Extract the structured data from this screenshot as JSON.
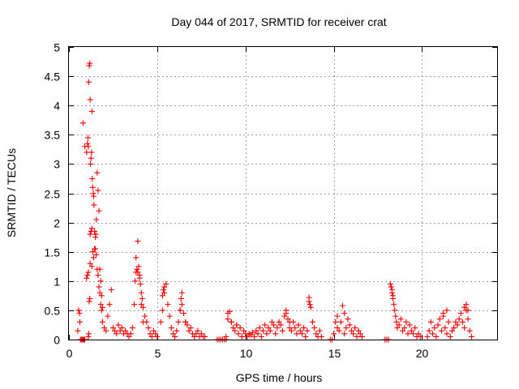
{
  "chart_data": {
    "type": "scatter",
    "title": "Day 044 of 2017, SRMTID for receiver crat",
    "xlabel": "GPS time / hours",
    "ylabel": "SRMTID / TECUs",
    "xlim": [
      0,
      24.25
    ],
    "ylim": [
      0,
      5
    ],
    "xticks": [
      0,
      5,
      10,
      15,
      20
    ],
    "yticks": [
      0,
      0.5,
      1,
      1.5,
      2,
      2.5,
      3,
      3.5,
      4,
      4.5,
      5
    ],
    "grid": true,
    "marker": "+",
    "color": "#ff0000",
    "series": [
      {
        "name": "SRMTID",
        "x": [
          0.5,
          0.55,
          0.6,
          0.62,
          0.65,
          0.7,
          0.75,
          0.8,
          0.85,
          0.9,
          0.8,
          0.9,
          1.0,
          1.05,
          1.08,
          1.1,
          1.12,
          1.15,
          1.18,
          1.2,
          1.22,
          1.25,
          1.28,
          1.3,
          1.32,
          1.35,
          1.38,
          1.4,
          1.42,
          1.45,
          1.5,
          1.55,
          1.6,
          1.65,
          1.7,
          1.75,
          1.8,
          1.85,
          1.9,
          2.0,
          2.1,
          2.2,
          2.3,
          2.4,
          2.5,
          2.6,
          2.7,
          2.8,
          2.9,
          3.0,
          3.1,
          3.2,
          3.3,
          3.4,
          1.1,
          1.12,
          1.15,
          1.18,
          1.2,
          1.25,
          1.3,
          1.35,
          1.4,
          1.0,
          1.05,
          1.1,
          1.2,
          1.3,
          1.45,
          1.5,
          1.52,
          1.55,
          1.6,
          1.65,
          1.7,
          1.75,
          1.8,
          1.85,
          1.9,
          3.5,
          3.6,
          3.7,
          3.75,
          3.8,
          3.85,
          3.9,
          3.95,
          4.0,
          4.05,
          4.1,
          4.15,
          4.2,
          4.3,
          4.4,
          4.5,
          4.6,
          4.7,
          4.8,
          4.9,
          5.0,
          3.8,
          3.9,
          4.0,
          4.1,
          4.2,
          5.2,
          5.3,
          5.4,
          5.5,
          5.6,
          5.7,
          5.8,
          5.9,
          6.0,
          6.1,
          6.2,
          6.3,
          6.4,
          6.5,
          6.6,
          6.7,
          6.8,
          6.9,
          7.0,
          7.1,
          7.2,
          7.3,
          7.4,
          7.5,
          7.6,
          7.7,
          5.3,
          5.35,
          5.4,
          6.3,
          6.35,
          6.4,
          6.5,
          6.6,
          8.4,
          8.5,
          8.6,
          8.7,
          8.8,
          8.9,
          8.9,
          9.0,
          9.1,
          9.2,
          9.3,
          9.4,
          9.5,
          9.6,
          9.7,
          9.8,
          9.9,
          10.0,
          10.1,
          10.2,
          10.3,
          10.4,
          10.5,
          10.6,
          10.7,
          10.8,
          10.9,
          11.0,
          11.1,
          11.2,
          11.3,
          11.4,
          11.5,
          11.6,
          11.7,
          11.8,
          11.9,
          12.0,
          12.1,
          12.2,
          12.3,
          12.4,
          12.5,
          12.6,
          12.7,
          12.8,
          12.9,
          13.0,
          13.1,
          13.2,
          13.3,
          13.4,
          13.5,
          13.6,
          13.7,
          13.8,
          13.9,
          14.0,
          14.1,
          14.2,
          14.3,
          9.0,
          9.2,
          9.5,
          12.3,
          12.5,
          13.6,
          13.65,
          14.8,
          14.9,
          15.0,
          15.1,
          15.2,
          15.3,
          15.4,
          15.5,
          15.6,
          15.7,
          15.8,
          15.9,
          16.0,
          16.1,
          16.2,
          16.3,
          16.4,
          16.5,
          16.6,
          15.2,
          15.6,
          17.9,
          18.0,
          18.1,
          18.2,
          18.25,
          18.3,
          18.35,
          18.4,
          18.45,
          18.5,
          18.55,
          18.6,
          18.7,
          18.8,
          18.9,
          19.0,
          19.1,
          19.2,
          19.3,
          19.4,
          19.5,
          19.6,
          19.7,
          19.8,
          19.9,
          18.3,
          18.35,
          20.3,
          20.4,
          20.5,
          20.6,
          20.7,
          20.8,
          20.9,
          21.0,
          21.1,
          21.2,
          21.3,
          21.4,
          21.5,
          21.6,
          21.7,
          21.8,
          21.9,
          22.0,
          22.1,
          22.2,
          22.3,
          22.4,
          22.5,
          22.6,
          22.7,
          22.8,
          21.2,
          21.4,
          22.4,
          22.5,
          22.6
        ],
        "y": [
          0.15,
          0.5,
          0.45,
          0.3,
          0.0,
          0.0,
          0.0,
          0.0,
          0.0,
          0.0,
          3.7,
          3.3,
          3.2,
          3.35,
          3.45,
          3.3,
          4.4,
          4.68,
          4.72,
          4.1,
          3.0,
          3.1,
          3.2,
          3.9,
          2.75,
          2.6,
          2.5,
          2.45,
          2.3,
          1.85,
          1.55,
          1.45,
          1.2,
          1.1,
          0.9,
          0.8,
          0.6,
          0.5,
          0.3,
          0.2,
          0.15,
          0.4,
          0.6,
          0.85,
          0.2,
          0.15,
          0.1,
          0.25,
          0.15,
          0.2,
          0.1,
          0.15,
          0.1,
          0.05,
          0.05,
          0.1,
          0.65,
          0.7,
          1.8,
          1.85,
          1.9,
          1.5,
          1.4,
          1.05,
          1.1,
          1.15,
          1.3,
          1.25,
          1.55,
          1.75,
          1.8,
          2.05,
          2.85,
          2.55,
          2.2,
          1.2,
          1.0,
          0.75,
          0.55,
          0.1,
          0.2,
          0.6,
          1.0,
          1.15,
          1.2,
          1.68,
          1.25,
          1.1,
          0.95,
          0.8,
          0.7,
          0.55,
          0.4,
          0.3,
          0.2,
          0.1,
          0.05,
          0.15,
          0.1,
          0.05,
          1.4,
          1.15,
          1.05,
          0.6,
          0.3,
          0.3,
          0.5,
          0.8,
          0.95,
          0.6,
          0.4,
          0.2,
          0.1,
          0.05,
          0.15,
          0.3,
          0.5,
          0.6,
          0.45,
          0.3,
          0.25,
          0.15,
          0.2,
          0.1,
          0.05,
          0.1,
          0.15,
          0.05,
          0.1,
          0.05,
          0.05,
          0.75,
          0.85,
          0.9,
          0.5,
          0.7,
          0.8,
          0.45,
          0.3,
          0.0,
          0.0,
          0.0,
          0.0,
          0.0,
          0.0,
          0.05,
          0.45,
          0.48,
          0.3,
          0.2,
          0.15,
          0.25,
          0.1,
          0.2,
          0.05,
          0.15,
          0.1,
          0.05,
          0.1,
          0.08,
          0.12,
          0.05,
          0.15,
          0.1,
          0.2,
          0.05,
          0.15,
          0.25,
          0.1,
          0.2,
          0.15,
          0.3,
          0.25,
          0.1,
          0.2,
          0.3,
          0.25,
          0.15,
          0.4,
          0.5,
          0.35,
          0.2,
          0.15,
          0.3,
          0.2,
          0.1,
          0.25,
          0.15,
          0.1,
          0.2,
          0.05,
          0.15,
          0.65,
          0.55,
          0.3,
          0.2,
          0.1,
          0.05,
          0.15,
          0.05,
          0.35,
          0.3,
          0.25,
          0.45,
          0.3,
          0.72,
          0.6,
          0.0,
          0.0,
          0.1,
          0.3,
          0.2,
          0.15,
          0.3,
          0.58,
          0.1,
          0.2,
          0.35,
          0.25,
          0.15,
          0.1,
          0.2,
          0.05,
          0.15,
          0.1,
          0.05,
          0.4,
          0.45,
          0.0,
          0.0,
          0.0,
          0.95,
          0.9,
          0.8,
          0.7,
          0.6,
          0.5,
          0.4,
          0.3,
          0.2,
          0.25,
          0.35,
          0.15,
          0.2,
          0.3,
          0.1,
          0.25,
          0.15,
          0.1,
          0.2,
          0.05,
          0.1,
          0.05,
          0.85,
          0.75,
          0.05,
          0.15,
          0.3,
          0.1,
          0.2,
          0.05,
          0.25,
          0.35,
          0.15,
          0.4,
          0.2,
          0.1,
          0.3,
          0.05,
          0.15,
          0.2,
          0.3,
          0.25,
          0.35,
          0.45,
          0.3,
          0.2,
          0.5,
          0.35,
          0.15,
          0.05,
          0.45,
          0.5,
          0.55,
          0.6,
          0.5
        ]
      }
    ]
  }
}
